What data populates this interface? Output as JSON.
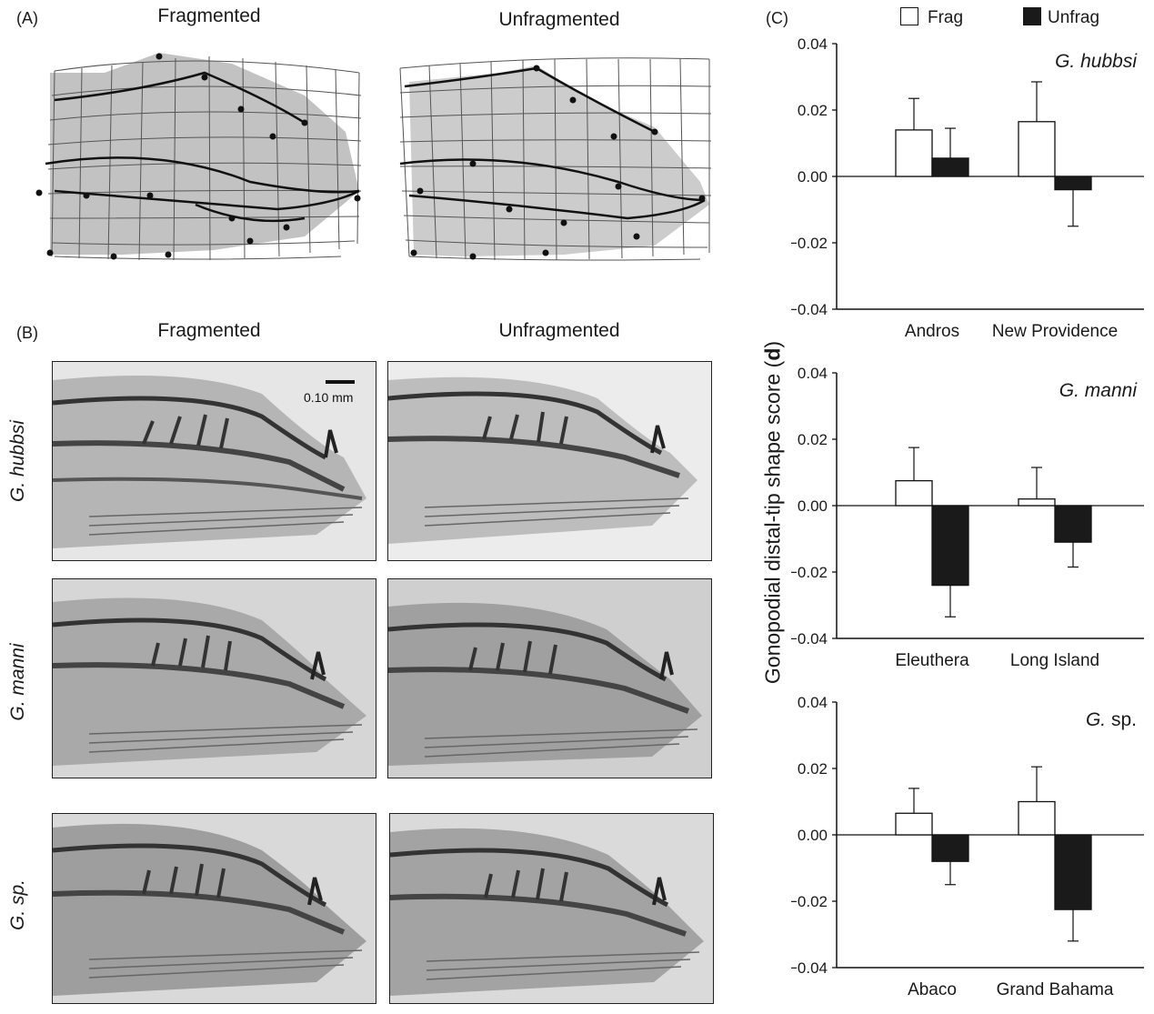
{
  "panels": {
    "a_label": "(A)",
    "b_label": "(B)",
    "c_label": "(C)"
  },
  "panel_a": {
    "left_title": "Fragmented",
    "right_title": "Unfragmented"
  },
  "panel_b": {
    "left_title": "Fragmented",
    "right_title": "Unfragmented",
    "scale_bar": "0.10 mm",
    "rows": [
      {
        "label_genus": "G.",
        "label_species": "hubbsi"
      },
      {
        "label_genus": "G.",
        "label_species": "manni"
      },
      {
        "label_genus": "G.",
        "label_species": "sp."
      }
    ]
  },
  "legend": {
    "frag": "Frag",
    "unfrag": "Unfrag",
    "frag_color": "#ffffff",
    "unfrag_color": "#1a1a1a"
  },
  "ylabel_text": "Gonopodial distal-tip shape score (",
  "ylabel_bold": "d",
  "ylabel_close": ")",
  "chart_data": [
    {
      "type": "bar",
      "title_genus": "G.",
      "title_species": "hubbsi",
      "categories": [
        "Andros",
        "New Providence"
      ],
      "ylim": [
        -0.04,
        0.04
      ],
      "yticks": [
        "0.04",
        "0.02",
        "0.00",
        "−0.02",
        "−0.04"
      ],
      "series": [
        {
          "name": "Frag",
          "values": [
            0.014,
            0.0165
          ],
          "errors": [
            0.0095,
            0.012
          ]
        },
        {
          "name": "Unfrag",
          "values": [
            0.0055,
            -0.004
          ],
          "errors": [
            0.009,
            0.011
          ]
        }
      ]
    },
    {
      "type": "bar",
      "title_genus": "G.",
      "title_species": "manni",
      "categories": [
        "Eleuthera",
        "Long Island"
      ],
      "ylim": [
        -0.04,
        0.04
      ],
      "yticks": [
        "0.04",
        "0.02",
        "0.00",
        "−0.02",
        "−0.04"
      ],
      "series": [
        {
          "name": "Frag",
          "values": [
            0.0075,
            0.002
          ],
          "errors": [
            0.01,
            0.0095
          ]
        },
        {
          "name": "Unfrag",
          "values": [
            -0.024,
            -0.011
          ],
          "errors": [
            0.0095,
            0.0075
          ]
        }
      ]
    },
    {
      "type": "bar",
      "title_genus": "G.",
      "title_species": "sp.",
      "categories": [
        "Abaco",
        "Grand Bahama"
      ],
      "ylim": [
        -0.04,
        0.04
      ],
      "yticks": [
        "0.04",
        "0.02",
        "0.00",
        "−0.02",
        "−0.04"
      ],
      "series": [
        {
          "name": "Frag",
          "values": [
            0.0065,
            0.01
          ],
          "errors": [
            0.0075,
            0.0105
          ]
        },
        {
          "name": "Unfrag",
          "values": [
            -0.008,
            -0.0225
          ],
          "errors": [
            0.007,
            0.0095
          ]
        }
      ]
    }
  ]
}
